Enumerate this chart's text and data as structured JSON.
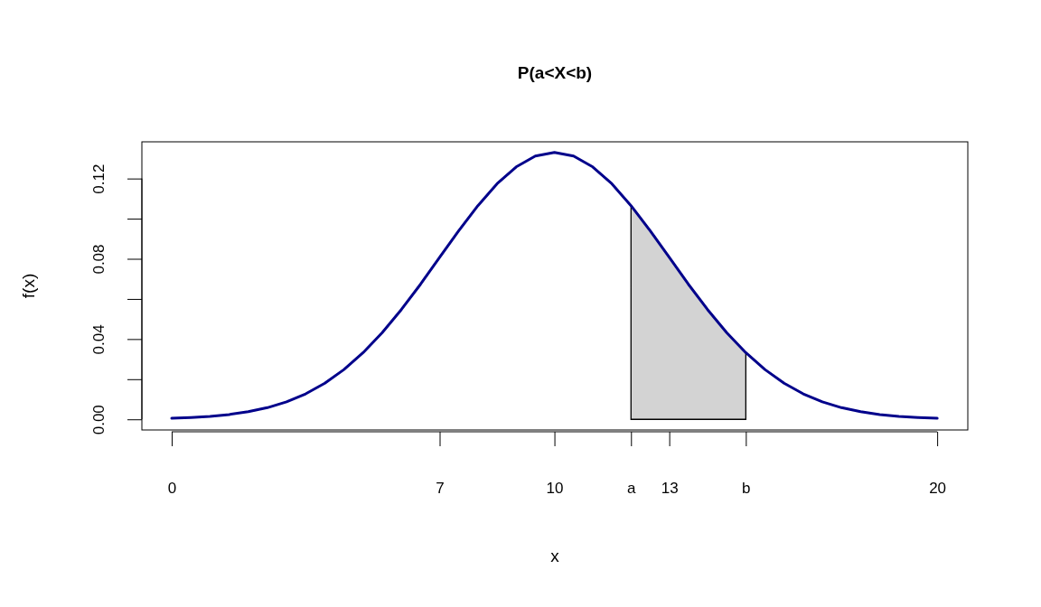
{
  "chart_data": {
    "type": "line",
    "title": "P(a<X<b)",
    "xlabel": "x",
    "ylabel": "f(x)",
    "xlim": [
      -0.78,
      20.8
    ],
    "ylim": [
      -0.0053,
      0.1383
    ],
    "xticks": [
      0,
      7,
      10,
      {
        "value": 12,
        "label": "a"
      },
      13,
      {
        "value": 15,
        "label": "b"
      },
      20
    ],
    "yticks": [
      {
        "value": 0,
        "label": "0.00"
      },
      {
        "value": 0.02,
        "label": null
      },
      0.04,
      {
        "value": 0.06,
        "label": null
      },
      0.08,
      {
        "value": 0.1,
        "label": null
      },
      0.12
    ],
    "grid": false,
    "marker": "none",
    "line_style": "solid",
    "series": [
      {
        "type": "area",
        "color": "#d3d3d3",
        "x": [
          12,
          12.5,
          13,
          13.5,
          14,
          14.5,
          15
        ],
        "values": [
          0.1065,
          0.094,
          0.0807,
          0.0673,
          0.0547,
          0.0432,
          0.0332
        ]
      },
      {
        "color": "#00008b",
        "x": [
          0,
          0.5,
          1,
          1.5,
          2,
          2.5,
          3,
          3.5,
          4,
          4.5,
          5,
          5.5,
          6,
          6.5,
          7,
          7.5,
          8,
          8.5,
          9,
          9.5,
          10,
          10.5,
          11,
          11.5,
          12,
          12.5,
          13,
          13.5,
          14,
          14.5,
          15,
          15.5,
          16,
          16.5,
          17,
          17.5,
          18,
          18.5,
          19,
          19.5,
          20
        ],
        "values": [
          0.0005,
          0.0009,
          0.0015,
          0.0024,
          0.0038,
          0.0058,
          0.0087,
          0.0127,
          0.018,
          0.0248,
          0.0332,
          0.0432,
          0.0547,
          0.0673,
          0.0807,
          0.094,
          0.1065,
          0.1174,
          0.1258,
          0.1312,
          0.133,
          0.1312,
          0.1258,
          0.1174,
          0.1065,
          0.094,
          0.0807,
          0.0673,
          0.0547,
          0.0432,
          0.0332,
          0.0248,
          0.018,
          0.0127,
          0.0087,
          0.0058,
          0.0038,
          0.0024,
          0.0015,
          0.0009,
          0.0005
        ]
      }
    ]
  }
}
